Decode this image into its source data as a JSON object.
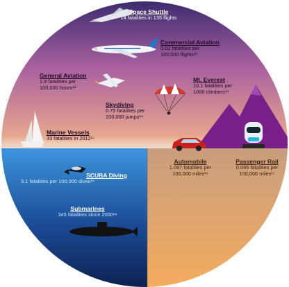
{
  "items": [
    {
      "key": "space_shuttle",
      "title": "Space Shuttle",
      "detail": [
        "14 fatalities in 135 flights"
      ]
    },
    {
      "key": "commercial_aviation",
      "title": "Commercial Aviation",
      "detail": [
        "0.02 fatalities per",
        "100,000 flights¹¹"
      ]
    },
    {
      "key": "general_aviation",
      "title": "General Aviation",
      "detail": [
        "1.9 fatalities per",
        "100,000 hours¹²"
      ]
    },
    {
      "key": "mt_everest",
      "title": "Mt. Everest",
      "detail": [
        "10.1 fatalities per",
        "1000 climbers¹³"
      ]
    },
    {
      "key": "skydiving",
      "title": "Skydiving",
      "detail": [
        "0.75 fatalities per",
        "100,000 jumps¹⁴"
      ]
    },
    {
      "key": "marine_vessels",
      "title": "Marine Vessels",
      "detail": [
        "33 fatalities in 2012¹⁵"
      ]
    },
    {
      "key": "automobile",
      "title": "Automobile",
      "detail": [
        "1.097 fatalities per",
        "100,000 miles¹⁶"
      ]
    },
    {
      "key": "passenger_rail",
      "title": "Passenger Rail",
      "detail": [
        "0.095 fatalities per",
        "100,000 miles¹⁷"
      ]
    },
    {
      "key": "scuba_diving",
      "title": "SCUBA Diving",
      "detail": [
        "3.1 fatalities per 100,000 dives¹⁸"
      ]
    },
    {
      "key": "submarines",
      "title": "Submarines",
      "detail": [
        "345 fatalities since 2000¹⁹"
      ]
    }
  ],
  "colors": {
    "sky_top": "#3a2a6e",
    "sky_mid": "#b06aa8",
    "sky_low": "#f2b48a",
    "ocean_top": "#3a8ed8",
    "ocean_bottom": "#0c1c4a",
    "ground_top": "#caa07a",
    "ground_bottom": "#f6b060",
    "mountain": "#7a1f8a"
  },
  "icons": [
    "space-shuttle-icon",
    "airliner-icon",
    "small-plane-icon",
    "parachute-icon",
    "sailboat-icon",
    "mountain-icon",
    "climber-icon",
    "car-icon",
    "scuba-diver-icon",
    "submarine-icon"
  ]
}
